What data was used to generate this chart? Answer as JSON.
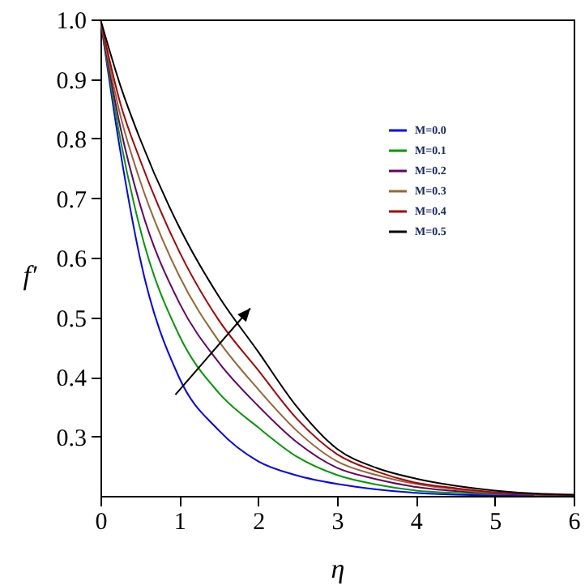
{
  "chart_data": {
    "type": "line",
    "xlabel": "η",
    "ylabel": "f′",
    "x": [
      0,
      0.25,
      0.5,
      1,
      1.5,
      2,
      2.5,
      3,
      3.5,
      4,
      4.5,
      5,
      5.5,
      6
    ],
    "series": [
      {
        "name": "M=0.0",
        "color": "#0000ff",
        "values": [
          1,
          0.78,
          0.6,
          0.398,
          0.31,
          0.258,
          0.234,
          0.22,
          0.211,
          0.205,
          0.202,
          0.201,
          0.201,
          null
        ]
      },
      {
        "name": "M=0.1",
        "color": "#009900",
        "values": [
          1,
          0.8,
          0.65,
          0.469,
          0.373,
          0.315,
          0.265,
          0.235,
          0.219,
          0.209,
          0.205,
          0.203,
          0.202,
          0.201
        ]
      },
      {
        "name": "M=0.2",
        "color": "#660066",
        "values": [
          1,
          0.82,
          0.69,
          0.524,
          0.424,
          0.351,
          0.289,
          0.247,
          0.228,
          0.215,
          0.208,
          0.204,
          0.202,
          0.201
        ]
      },
      {
        "name": "M=0.3",
        "color": "#996633",
        "values": [
          1,
          0.84,
          0.73,
          0.569,
          0.46,
          0.379,
          0.308,
          0.258,
          0.235,
          0.22,
          0.211,
          0.205,
          0.203,
          0.201
        ]
      },
      {
        "name": "M=0.4",
        "color": "#aa0000",
        "values": [
          1,
          0.86,
          0.765,
          0.61,
          0.495,
          0.411,
          0.328,
          0.27,
          0.241,
          0.222,
          0.213,
          0.206,
          0.203,
          0.201
        ]
      },
      {
        "name": "M=0.5",
        "color": "#000000",
        "values": [
          1,
          0.89,
          0.8,
          0.651,
          0.535,
          0.442,
          0.348,
          0.279,
          0.247,
          0.229,
          0.217,
          0.209,
          0.204,
          0.202
        ]
      }
    ],
    "xlim": [
      0,
      6
    ],
    "xticks": [
      0,
      1,
      2,
      3,
      4,
      5,
      6
    ],
    "ylim": [
      0.2,
      1.0
    ],
    "yticks": [
      0.3,
      0.4,
      0.5,
      0.6,
      0.7,
      0.8,
      0.9,
      {
        "value": 1.0,
        "label": "1.0"
      }
    ],
    "legend": "right",
    "grid": false,
    "marker": "none",
    "line_style": "solid"
  }
}
